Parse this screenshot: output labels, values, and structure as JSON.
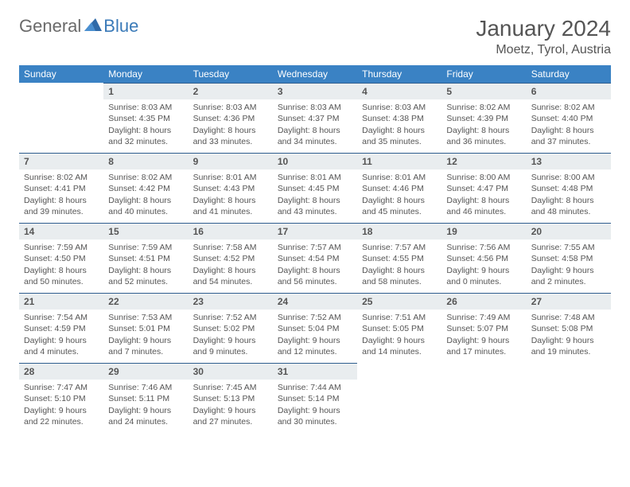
{
  "logo": {
    "part1": "General",
    "part2": "Blue"
  },
  "title": "January 2024",
  "location": "Moetz, Tyrol, Austria",
  "colors": {
    "header_bg": "#3a82c4",
    "header_text": "#ffffff",
    "daynum_bg": "#e9edef",
    "daynum_border": "#2f5e8f",
    "body_text": "#555555",
    "logo_gray": "#6a6a6a",
    "logo_blue": "#3a7ab8"
  },
  "weekdays": [
    "Sunday",
    "Monday",
    "Tuesday",
    "Wednesday",
    "Thursday",
    "Friday",
    "Saturday"
  ],
  "weeks": [
    [
      {
        "n": "",
        "sr": "",
        "ss": "",
        "dl": ""
      },
      {
        "n": "1",
        "sr": "Sunrise: 8:03 AM",
        "ss": "Sunset: 4:35 PM",
        "dl": "Daylight: 8 hours and 32 minutes."
      },
      {
        "n": "2",
        "sr": "Sunrise: 8:03 AM",
        "ss": "Sunset: 4:36 PM",
        "dl": "Daylight: 8 hours and 33 minutes."
      },
      {
        "n": "3",
        "sr": "Sunrise: 8:03 AM",
        "ss": "Sunset: 4:37 PM",
        "dl": "Daylight: 8 hours and 34 minutes."
      },
      {
        "n": "4",
        "sr": "Sunrise: 8:03 AM",
        "ss": "Sunset: 4:38 PM",
        "dl": "Daylight: 8 hours and 35 minutes."
      },
      {
        "n": "5",
        "sr": "Sunrise: 8:02 AM",
        "ss": "Sunset: 4:39 PM",
        "dl": "Daylight: 8 hours and 36 minutes."
      },
      {
        "n": "6",
        "sr": "Sunrise: 8:02 AM",
        "ss": "Sunset: 4:40 PM",
        "dl": "Daylight: 8 hours and 37 minutes."
      }
    ],
    [
      {
        "n": "7",
        "sr": "Sunrise: 8:02 AM",
        "ss": "Sunset: 4:41 PM",
        "dl": "Daylight: 8 hours and 39 minutes."
      },
      {
        "n": "8",
        "sr": "Sunrise: 8:02 AM",
        "ss": "Sunset: 4:42 PM",
        "dl": "Daylight: 8 hours and 40 minutes."
      },
      {
        "n": "9",
        "sr": "Sunrise: 8:01 AM",
        "ss": "Sunset: 4:43 PM",
        "dl": "Daylight: 8 hours and 41 minutes."
      },
      {
        "n": "10",
        "sr": "Sunrise: 8:01 AM",
        "ss": "Sunset: 4:45 PM",
        "dl": "Daylight: 8 hours and 43 minutes."
      },
      {
        "n": "11",
        "sr": "Sunrise: 8:01 AM",
        "ss": "Sunset: 4:46 PM",
        "dl": "Daylight: 8 hours and 45 minutes."
      },
      {
        "n": "12",
        "sr": "Sunrise: 8:00 AM",
        "ss": "Sunset: 4:47 PM",
        "dl": "Daylight: 8 hours and 46 minutes."
      },
      {
        "n": "13",
        "sr": "Sunrise: 8:00 AM",
        "ss": "Sunset: 4:48 PM",
        "dl": "Daylight: 8 hours and 48 minutes."
      }
    ],
    [
      {
        "n": "14",
        "sr": "Sunrise: 7:59 AM",
        "ss": "Sunset: 4:50 PM",
        "dl": "Daylight: 8 hours and 50 minutes."
      },
      {
        "n": "15",
        "sr": "Sunrise: 7:59 AM",
        "ss": "Sunset: 4:51 PM",
        "dl": "Daylight: 8 hours and 52 minutes."
      },
      {
        "n": "16",
        "sr": "Sunrise: 7:58 AM",
        "ss": "Sunset: 4:52 PM",
        "dl": "Daylight: 8 hours and 54 minutes."
      },
      {
        "n": "17",
        "sr": "Sunrise: 7:57 AM",
        "ss": "Sunset: 4:54 PM",
        "dl": "Daylight: 8 hours and 56 minutes."
      },
      {
        "n": "18",
        "sr": "Sunrise: 7:57 AM",
        "ss": "Sunset: 4:55 PM",
        "dl": "Daylight: 8 hours and 58 minutes."
      },
      {
        "n": "19",
        "sr": "Sunrise: 7:56 AM",
        "ss": "Sunset: 4:56 PM",
        "dl": "Daylight: 9 hours and 0 minutes."
      },
      {
        "n": "20",
        "sr": "Sunrise: 7:55 AM",
        "ss": "Sunset: 4:58 PM",
        "dl": "Daylight: 9 hours and 2 minutes."
      }
    ],
    [
      {
        "n": "21",
        "sr": "Sunrise: 7:54 AM",
        "ss": "Sunset: 4:59 PM",
        "dl": "Daylight: 9 hours and 4 minutes."
      },
      {
        "n": "22",
        "sr": "Sunrise: 7:53 AM",
        "ss": "Sunset: 5:01 PM",
        "dl": "Daylight: 9 hours and 7 minutes."
      },
      {
        "n": "23",
        "sr": "Sunrise: 7:52 AM",
        "ss": "Sunset: 5:02 PM",
        "dl": "Daylight: 9 hours and 9 minutes."
      },
      {
        "n": "24",
        "sr": "Sunrise: 7:52 AM",
        "ss": "Sunset: 5:04 PM",
        "dl": "Daylight: 9 hours and 12 minutes."
      },
      {
        "n": "25",
        "sr": "Sunrise: 7:51 AM",
        "ss": "Sunset: 5:05 PM",
        "dl": "Daylight: 9 hours and 14 minutes."
      },
      {
        "n": "26",
        "sr": "Sunrise: 7:49 AM",
        "ss": "Sunset: 5:07 PM",
        "dl": "Daylight: 9 hours and 17 minutes."
      },
      {
        "n": "27",
        "sr": "Sunrise: 7:48 AM",
        "ss": "Sunset: 5:08 PM",
        "dl": "Daylight: 9 hours and 19 minutes."
      }
    ],
    [
      {
        "n": "28",
        "sr": "Sunrise: 7:47 AM",
        "ss": "Sunset: 5:10 PM",
        "dl": "Daylight: 9 hours and 22 minutes."
      },
      {
        "n": "29",
        "sr": "Sunrise: 7:46 AM",
        "ss": "Sunset: 5:11 PM",
        "dl": "Daylight: 9 hours and 24 minutes."
      },
      {
        "n": "30",
        "sr": "Sunrise: 7:45 AM",
        "ss": "Sunset: 5:13 PM",
        "dl": "Daylight: 9 hours and 27 minutes."
      },
      {
        "n": "31",
        "sr": "Sunrise: 7:44 AM",
        "ss": "Sunset: 5:14 PM",
        "dl": "Daylight: 9 hours and 30 minutes."
      },
      {
        "n": "",
        "sr": "",
        "ss": "",
        "dl": ""
      },
      {
        "n": "",
        "sr": "",
        "ss": "",
        "dl": ""
      },
      {
        "n": "",
        "sr": "",
        "ss": "",
        "dl": ""
      }
    ]
  ]
}
